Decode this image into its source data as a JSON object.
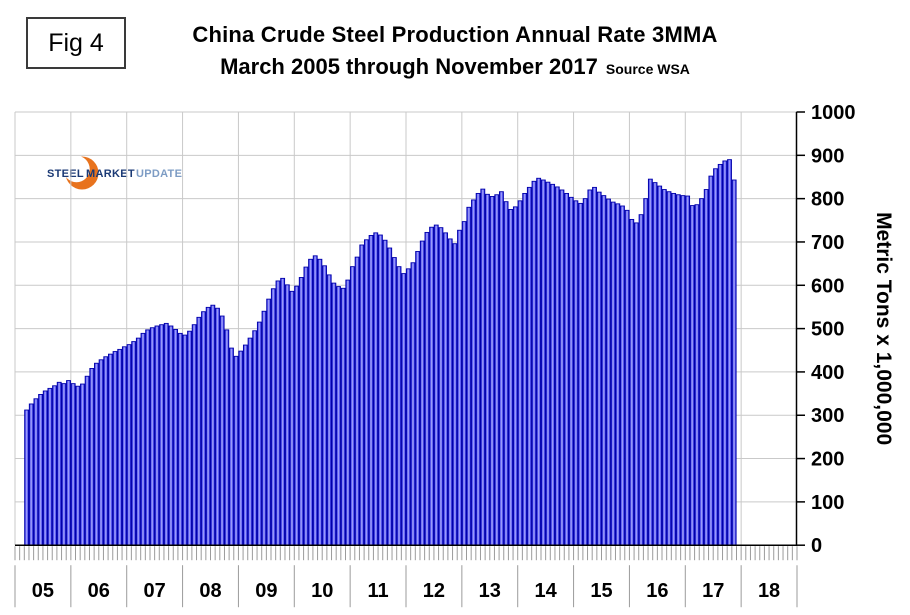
{
  "figure_label": "Fig 4",
  "header": {
    "title": "China Crude Steel Production Annual Rate 3MMA",
    "subtitle": "March 2005 through November 2017",
    "source": "Source WSA"
  },
  "logo": {
    "steel": "STEEL",
    "market": "MARKET",
    "update": "UPDATE",
    "crescent_color": "#e8731e"
  },
  "chart_data": {
    "type": "bar",
    "title": "China Crude Steel Production Annual Rate 3MMA",
    "xlabel": "",
    "ylabel": "Metric Tons x 1,000,000",
    "ylim": [
      0,
      1000
    ],
    "y_ticks": [
      0,
      100,
      200,
      300,
      400,
      500,
      600,
      700,
      800,
      900,
      1000
    ],
    "x_years": [
      "05",
      "06",
      "07",
      "08",
      "09",
      "10",
      "11",
      "12",
      "13",
      "14",
      "15",
      "16",
      "17",
      "18"
    ],
    "grid": true,
    "legend": "none",
    "bar_fill": "#4040ee",
    "bar_fill_center": "#9a9af8",
    "bar_edge": "#0000aa",
    "grid_color": "#c9c9c9",
    "tick_color": "#9b9b9b",
    "series": [
      {
        "name": "Crude steel production annual rate 3MMA (million metric tons)",
        "start": "2005-03",
        "end": "2017-11",
        "data": [
          {
            "year": 2005,
            "start_month": 3,
            "values": [
              312,
              326,
              338,
              348,
              356,
              362,
              368,
              376,
              373,
              380
            ]
          },
          {
            "year": 2006,
            "start_month": 1,
            "values": [
              373,
              367,
              372,
              390,
              408,
              420,
              428,
              435,
              441,
              447,
              452,
              458
            ]
          },
          {
            "year": 2007,
            "start_month": 1,
            "values": [
              463,
              470,
              478,
              489,
              497,
              502,
              506,
              509,
              512,
              506,
              498,
              489
            ]
          },
          {
            "year": 2008,
            "start_month": 1,
            "values": [
              485,
              494,
              509,
              526,
              539,
              549,
              554,
              547,
              529,
              497,
              455,
              436
            ]
          },
          {
            "year": 2009,
            "start_month": 1,
            "values": [
              448,
              462,
              478,
              495,
              515,
              540,
              568,
              592,
              610,
              616,
              601,
              586
            ]
          },
          {
            "year": 2010,
            "start_month": 1,
            "values": [
              598,
              618,
              642,
              660,
              668,
              660,
              645,
              624,
              605,
              597,
              593,
              612
            ]
          },
          {
            "year": 2011,
            "start_month": 1,
            "values": [
              643,
              665,
              693,
              705,
              715,
              721,
              716,
              704,
              686,
              664,
              643,
              627
            ]
          },
          {
            "year": 2012,
            "start_month": 1,
            "values": [
              638,
              652,
              678,
              702,
              722,
              734,
              739,
              733,
              721,
              707,
              696,
              727
            ]
          },
          {
            "year": 2013,
            "start_month": 1,
            "values": [
              747,
              780,
              797,
              812,
              822,
              810,
              805,
              809,
              816,
              793,
              775,
              781
            ]
          },
          {
            "year": 2014,
            "start_month": 1,
            "values": [
              795,
              812,
              826,
              840,
              847,
              843,
              838,
              833,
              827,
              820,
              812,
              803
            ]
          },
          {
            "year": 2015,
            "start_month": 1,
            "values": [
              795,
              789,
              800,
              820,
              826,
              815,
              807,
              799,
              792,
              788,
              783,
              773
            ]
          },
          {
            "year": 2016,
            "start_month": 1,
            "values": [
              752,
              744,
              763,
              800,
              845,
              837,
              829,
              821,
              816,
              812,
              809,
              807
            ]
          },
          {
            "year": 2017,
            "start_month": 1,
            "values": [
              806,
              784,
              786,
              800,
              821,
              852,
              869,
              879,
              887,
              890,
              843
            ]
          }
        ]
      }
    ]
  }
}
